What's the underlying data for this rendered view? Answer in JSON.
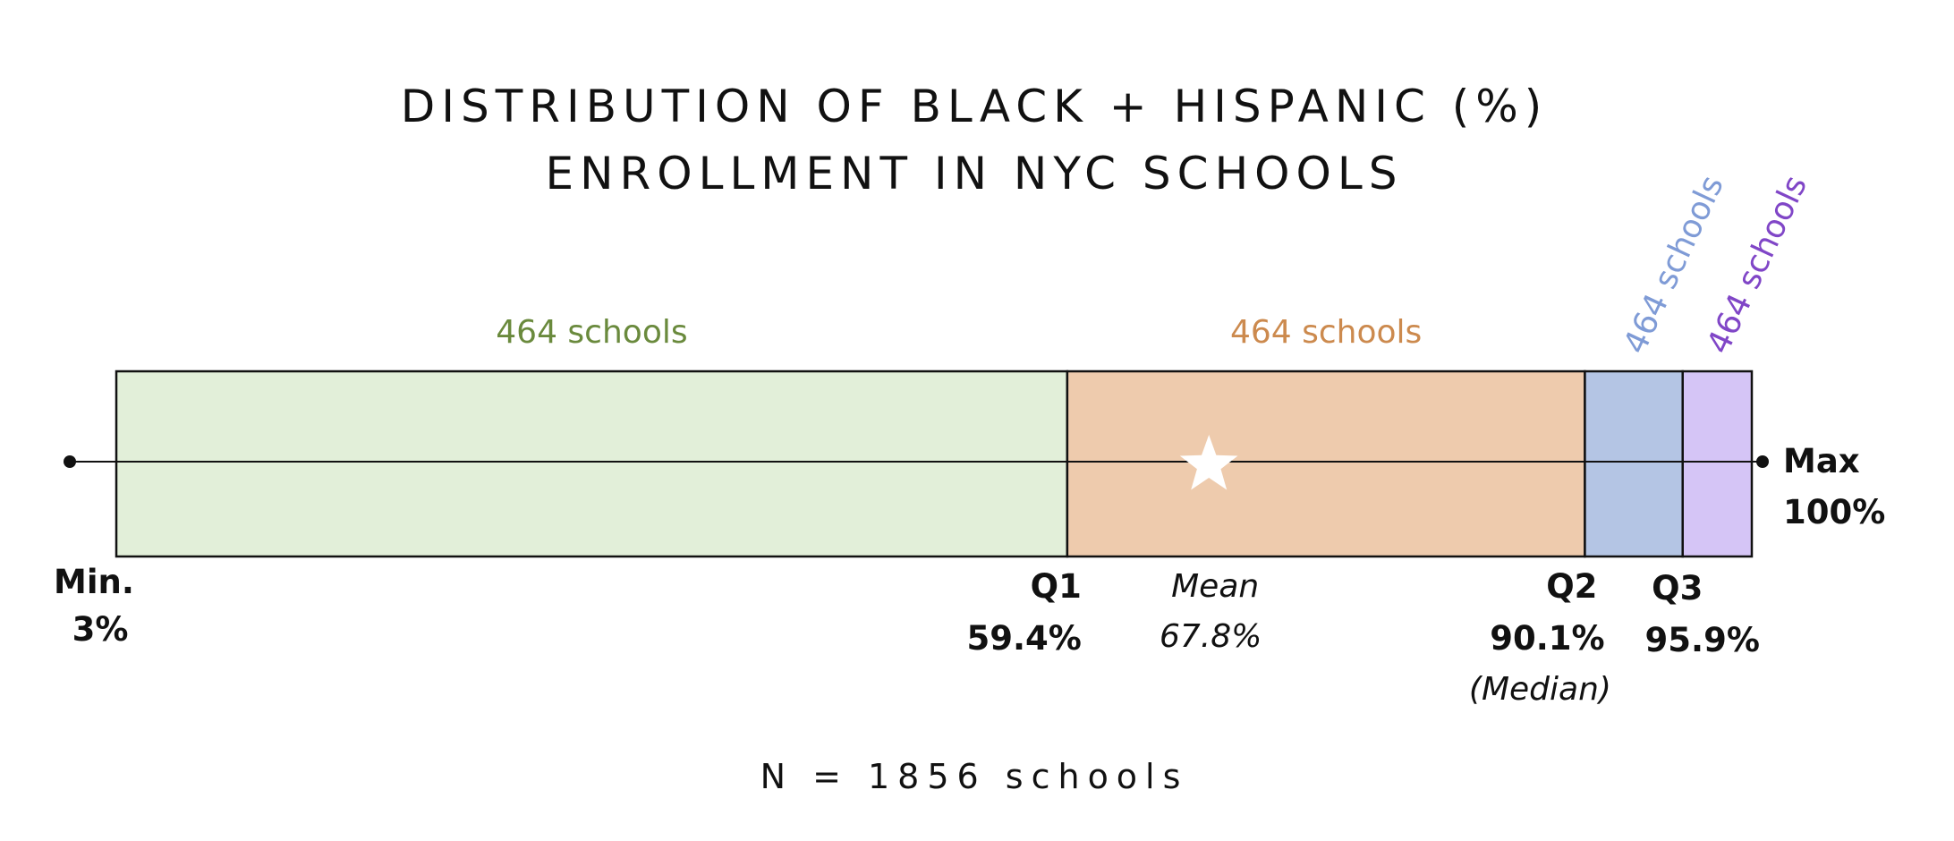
{
  "colors": {
    "segment_fills": [
      "#e2efd9",
      "#eecbad",
      "#b4c5e4",
      "#d5c5f6"
    ],
    "segment_text": [
      "#6a8a3d",
      "#cc8a4e",
      "#7f9bd6",
      "#8046c7"
    ],
    "ink": "#111111"
  },
  "chart_data": {
    "type": "box",
    "title": [
      "DISTRIBUTION OF BLACK + HISPANIC (%)",
      "ENROLLMENT IN NYC SCHOOLS"
    ],
    "xlim": [
      3,
      100
    ],
    "min": {
      "label": "Min.",
      "value": 3,
      "value_text": "3%"
    },
    "q1": {
      "label": "Q1",
      "value": 59.4,
      "value_text": "59.4%"
    },
    "mean": {
      "label": "Mean",
      "value": 67.8,
      "value_text": "67.8%",
      "marker": "star"
    },
    "q2": {
      "label": "Q2",
      "value": 90.1,
      "value_text": "90.1%",
      "note": "(Median)"
    },
    "q3": {
      "label": "Q3",
      "value": 95.9,
      "value_text": "95.9%"
    },
    "max": {
      "label": "Max",
      "value": 100,
      "value_text": "100%"
    },
    "segments": [
      {
        "from": 3,
        "to": 59.4,
        "count_text": "464 schools"
      },
      {
        "from": 59.4,
        "to": 90.1,
        "count_text": "464 schools"
      },
      {
        "from": 90.1,
        "to": 95.9,
        "count_text": "464 schools"
      },
      {
        "from": 95.9,
        "to": 100,
        "count_text": "464 schools"
      }
    ],
    "footnote": "N = 1856 schools"
  }
}
